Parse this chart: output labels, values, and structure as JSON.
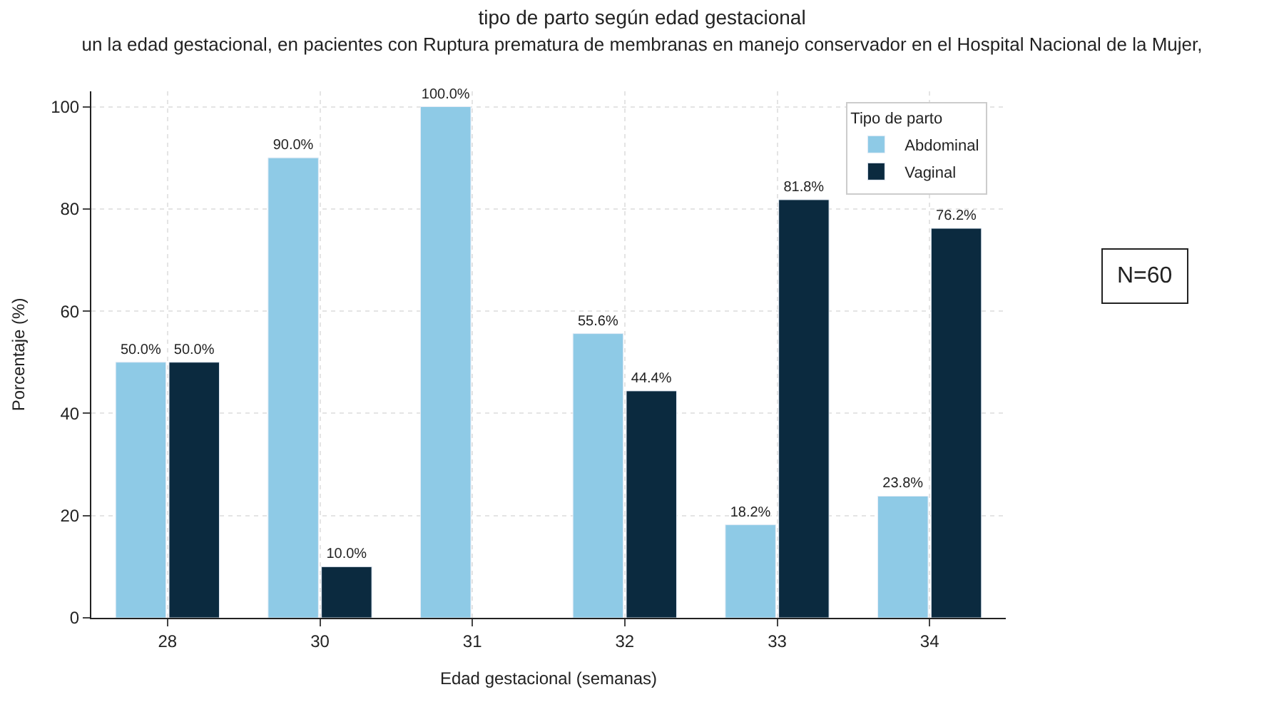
{
  "chart_data": {
    "type": "bar",
    "title": "tipo de parto según edad gestacional",
    "subtitle": "un la edad gestacional, en pacientes con Ruptura prematura de membranas en manejo conservador en el Hospital Nacional de la Mujer,",
    "xlabel": "Edad gestacional (semanas)",
    "ylabel": "Porcentaje (%)",
    "legend_title": "Tipo de parto",
    "categories": [
      "28",
      "30",
      "31",
      "32",
      "33",
      "34"
    ],
    "series": [
      {
        "name": "Abdominal",
        "color": "#8ecae6",
        "values": [
          50.0,
          90.0,
          100.0,
          55.6,
          18.2,
          23.8
        ],
        "value_labels": [
          "50.0%",
          "90.0%",
          "100.0%",
          "55.6%",
          "18.2%",
          "23.8%"
        ]
      },
      {
        "name": "Vaginal",
        "color": "#0b2a3f",
        "values": [
          50.0,
          10.0,
          null,
          44.4,
          81.8,
          76.2
        ],
        "value_labels": [
          "50.0%",
          "10.0%",
          null,
          "44.4%",
          "81.8%",
          "76.2%"
        ]
      }
    ],
    "ylim": [
      0,
      103
    ],
    "yticks": [
      0,
      20,
      40,
      60,
      80,
      100
    ],
    "grid": true,
    "legend": "top right",
    "annotations": [
      "N=60"
    ]
  }
}
